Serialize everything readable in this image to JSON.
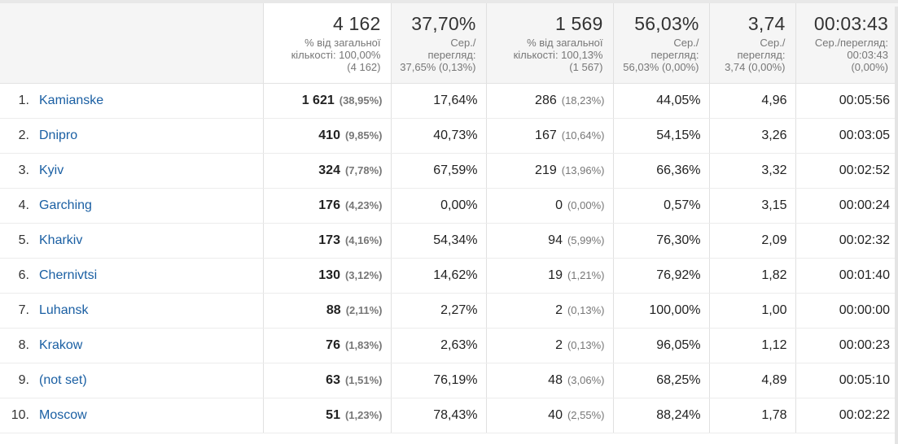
{
  "headers": [
    {
      "main": "4 162",
      "sub": [
        "% від загальної",
        "кількості: 100,00%",
        "(4 162)"
      ]
    },
    {
      "main": "37,70%",
      "sub": [
        "Сер./",
        "перегляд:",
        "37,65% (0,13%)"
      ]
    },
    {
      "main": "1 569",
      "sub": [
        "% від загальної",
        "кількості: 100,13%",
        "(1 567)"
      ]
    },
    {
      "main": "56,03%",
      "sub": [
        "Сер./",
        "перегляд:",
        "56,03% (0,00%)"
      ]
    },
    {
      "main": "3,74",
      "sub": [
        "Сер./",
        "перегляд:",
        "3,74 (0,00%)"
      ]
    },
    {
      "main": "00:03:43",
      "sub": [
        "Сер./перегляд:",
        "00:03:43",
        "(0,00%)"
      ]
    }
  ],
  "rows": [
    {
      "n": "1.",
      "city": "Kamianske",
      "users": "1 621",
      "users_pct": "(38,95%)",
      "bounce": "17,64%",
      "new": "286",
      "new_pct": "(18,23%)",
      "newpct": "44,05%",
      "pages": "4,96",
      "dur": "00:05:56"
    },
    {
      "n": "2.",
      "city": "Dnipro",
      "users": "410",
      "users_pct": "(9,85%)",
      "bounce": "40,73%",
      "new": "167",
      "new_pct": "(10,64%)",
      "newpct": "54,15%",
      "pages": "3,26",
      "dur": "00:03:05"
    },
    {
      "n": "3.",
      "city": "Kyiv",
      "users": "324",
      "users_pct": "(7,78%)",
      "bounce": "67,59%",
      "new": "219",
      "new_pct": "(13,96%)",
      "newpct": "66,36%",
      "pages": "3,32",
      "dur": "00:02:52"
    },
    {
      "n": "4.",
      "city": "Garching",
      "users": "176",
      "users_pct": "(4,23%)",
      "bounce": "0,00%",
      "new": "0",
      "new_pct": "(0,00%)",
      "newpct": "0,57%",
      "pages": "3,15",
      "dur": "00:00:24"
    },
    {
      "n": "5.",
      "city": "Kharkiv",
      "users": "173",
      "users_pct": "(4,16%)",
      "bounce": "54,34%",
      "new": "94",
      "new_pct": "(5,99%)",
      "newpct": "76,30%",
      "pages": "2,09",
      "dur": "00:02:32"
    },
    {
      "n": "6.",
      "city": "Chernivtsi",
      "users": "130",
      "users_pct": "(3,12%)",
      "bounce": "14,62%",
      "new": "19",
      "new_pct": "(1,21%)",
      "newpct": "76,92%",
      "pages": "1,82",
      "dur": "00:01:40"
    },
    {
      "n": "7.",
      "city": "Luhansk",
      "users": "88",
      "users_pct": "(2,11%)",
      "bounce": "2,27%",
      "new": "2",
      "new_pct": "(0,13%)",
      "newpct": "100,00%",
      "pages": "1,00",
      "dur": "00:00:00"
    },
    {
      "n": "8.",
      "city": "Krakow",
      "users": "76",
      "users_pct": "(1,83%)",
      "bounce": "2,63%",
      "new": "2",
      "new_pct": "(0,13%)",
      "newpct": "96,05%",
      "pages": "1,12",
      "dur": "00:00:23"
    },
    {
      "n": "9.",
      "city": "(not set)",
      "users": "63",
      "users_pct": "(1,51%)",
      "bounce": "76,19%",
      "new": "48",
      "new_pct": "(3,06%)",
      "newpct": "68,25%",
      "pages": "4,89",
      "dur": "00:05:10"
    },
    {
      "n": "10.",
      "city": "Moscow",
      "users": "51",
      "users_pct": "(1,23%)",
      "bounce": "78,43%",
      "new": "40",
      "new_pct": "(2,55%)",
      "newpct": "88,24%",
      "pages": "1,78",
      "dur": "00:02:22"
    }
  ]
}
